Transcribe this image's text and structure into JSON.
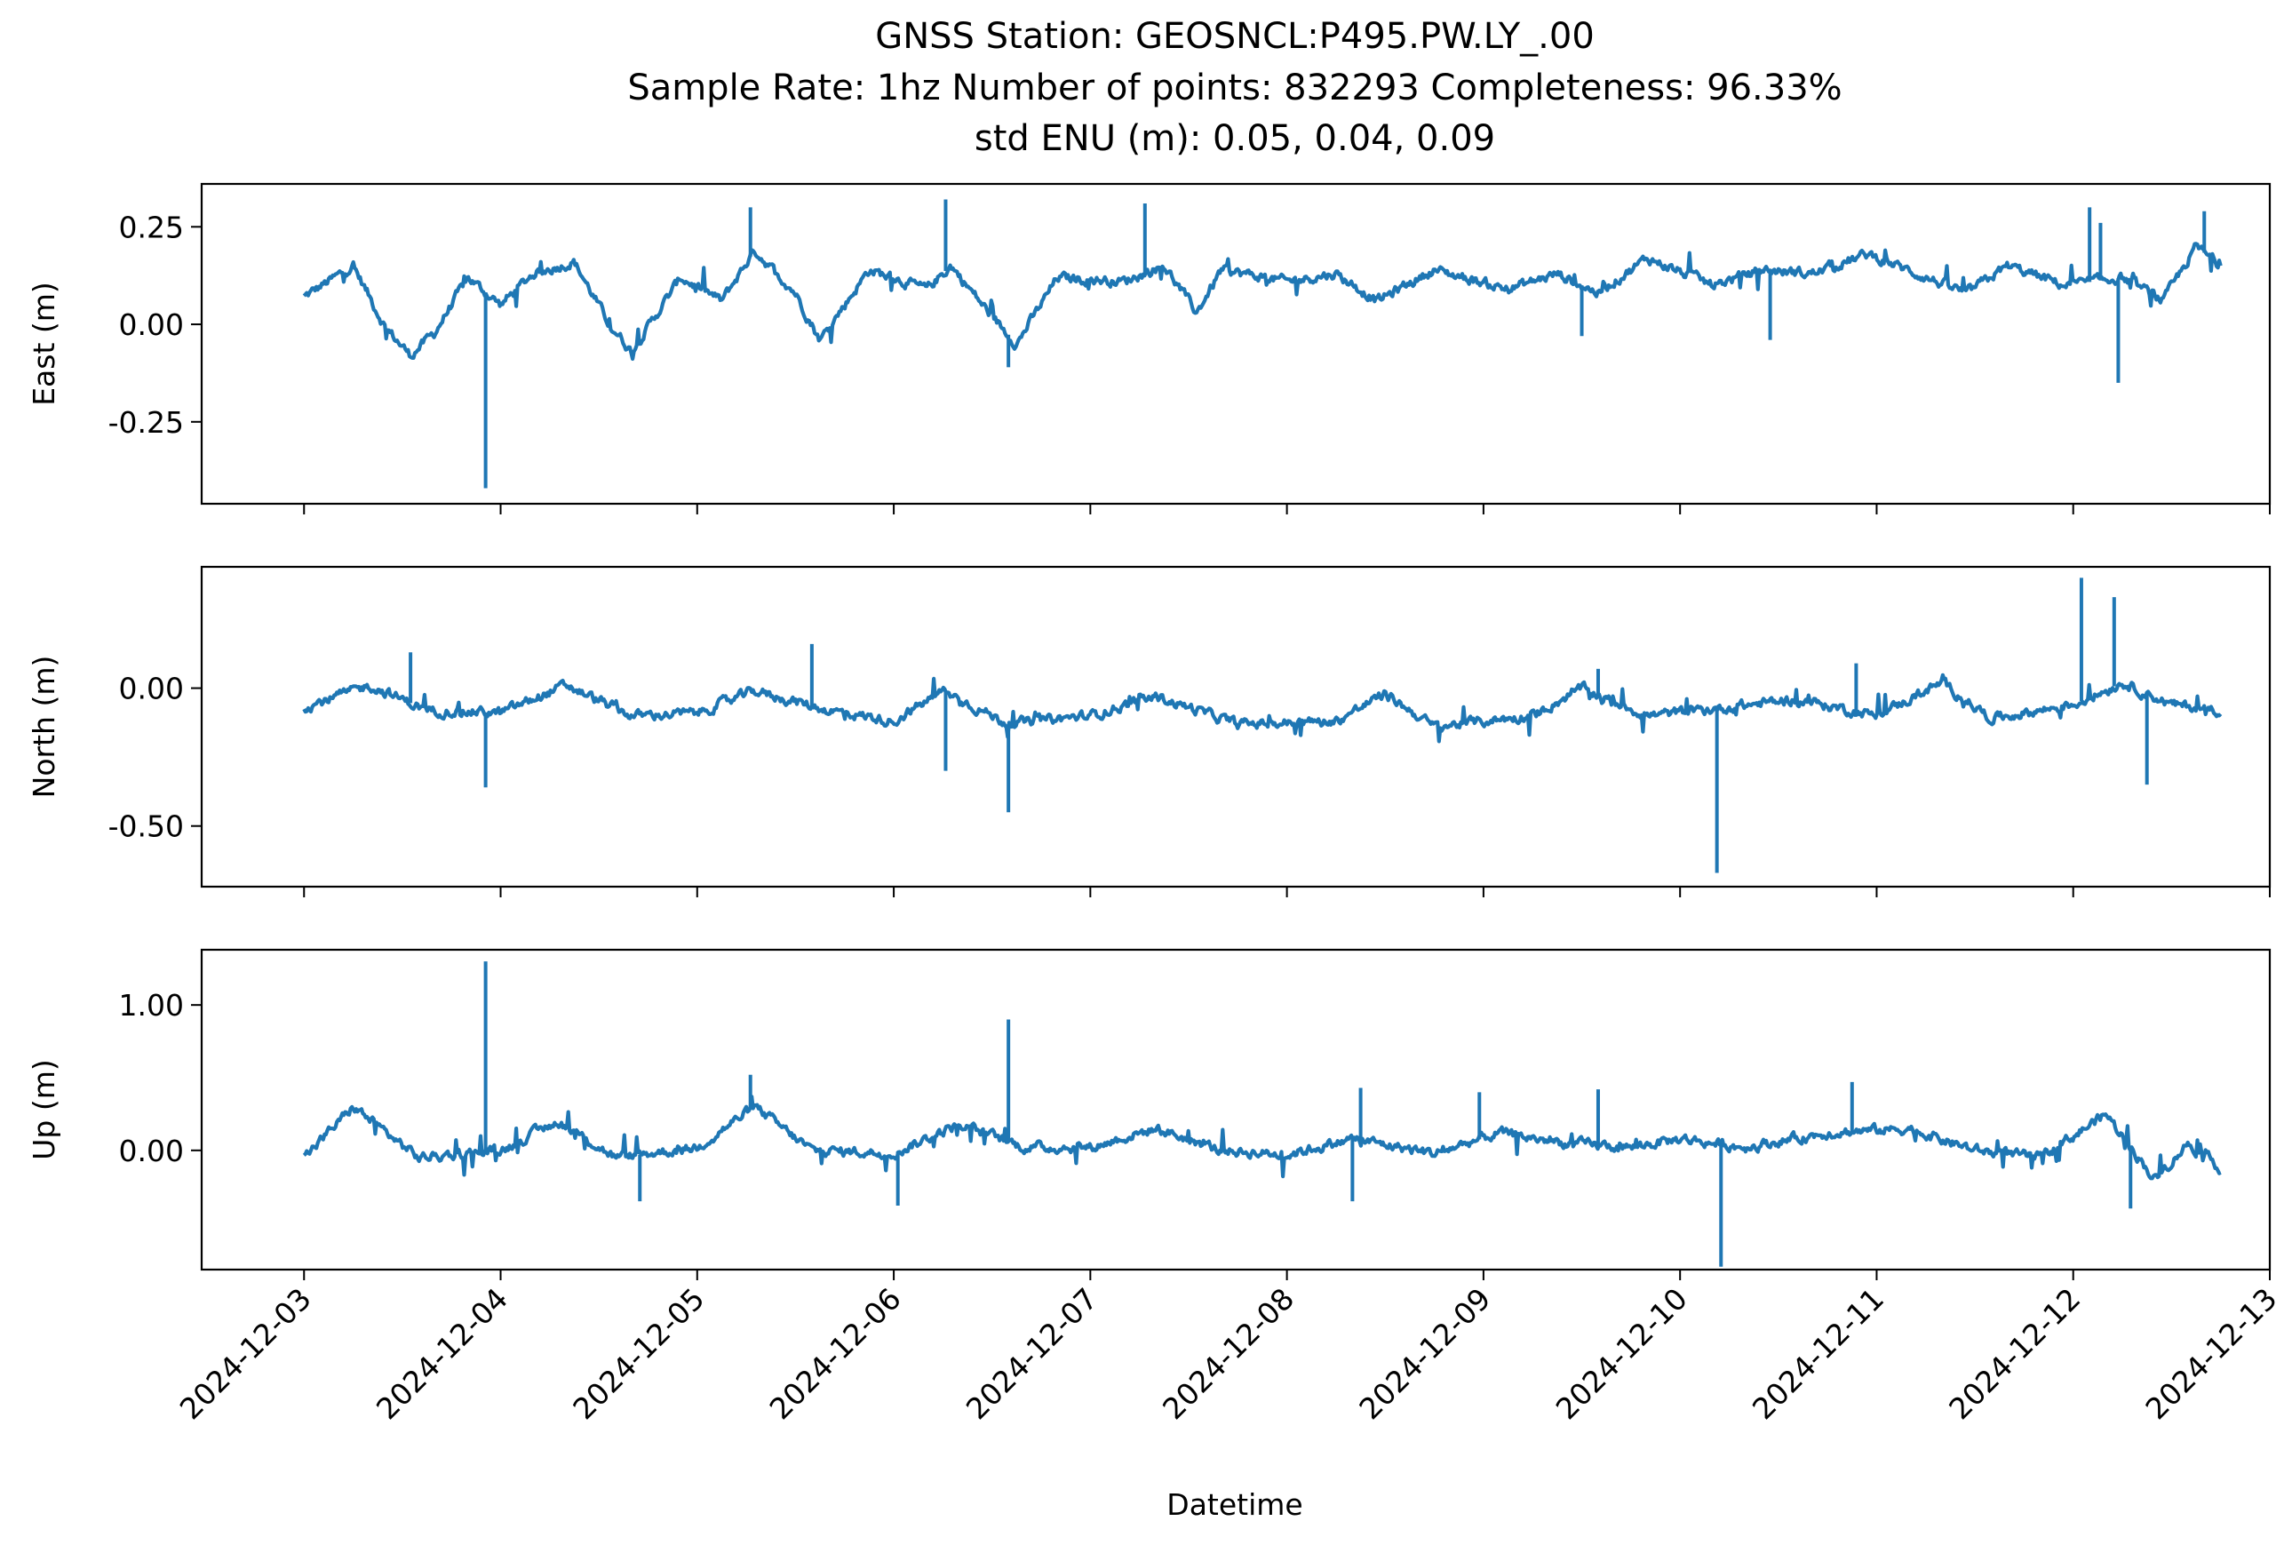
{
  "chart_data": {
    "type": "line",
    "title_lines": [
      "GNSS Station: GEOSNCL:P495.PW.LY_.00",
      "Sample Rate: 1hz   Number of points: 832293    Completeness:  96.33%",
      "std ENU (m):  0.05, 0.04, 0.09"
    ],
    "xlabel": "Datetime",
    "x_range": [
      "2024-12-02 11:30",
      "2024-12-13 00:00"
    ],
    "x_ticks": [
      "2024-12-03",
      "2024-12-04",
      "2024-12-05",
      "2024-12-06",
      "2024-12-07",
      "2024-12-08",
      "2024-12-09",
      "2024-12-10",
      "2024-12-11",
      "2024-12-12",
      "2024-12-13"
    ],
    "x_data_range": [
      "2024-12-03 00:00",
      "2024-12-12 18:00"
    ],
    "grid": false,
    "line_color": "#1f77b4",
    "panels": [
      {
        "ylabel": "East (m)",
        "ylim": [
          -0.46,
          0.36
        ],
        "yticks": [
          0.25,
          0.0,
          -0.25
        ],
        "ytick_labels": [
          "0.25",
          "0.00",
          "-0.25"
        ],
        "baseline": [
          [
            "2024-12-03 00:00",
            0.07
          ],
          [
            "2024-12-03 06:00",
            0.15
          ],
          [
            "2024-12-03 10:00",
            -0.01
          ],
          [
            "2024-12-03 13:00",
            -0.08
          ],
          [
            "2024-12-03 16:00",
            -0.02
          ],
          [
            "2024-12-03 20:00",
            0.12
          ],
          [
            "2024-12-04 00:00",
            0.05
          ],
          [
            "2024-12-04 04:00",
            0.13
          ],
          [
            "2024-12-04 09:00",
            0.16
          ],
          [
            "2024-12-04 13:00",
            0.01
          ],
          [
            "2024-12-04 16:00",
            -0.07
          ],
          [
            "2024-12-04 22:00",
            0.12
          ],
          [
            "2024-12-05 03:00",
            0.06
          ],
          [
            "2024-12-05 07:00",
            0.19
          ],
          [
            "2024-12-05 12:00",
            0.08
          ],
          [
            "2024-12-05 15:00",
            -0.04
          ],
          [
            "2024-12-05 21:00",
            0.14
          ],
          [
            "2024-12-06 04:00",
            0.09
          ],
          [
            "2024-12-06 07:00",
            0.15
          ],
          [
            "2024-12-06 12:00",
            0.02
          ],
          [
            "2024-12-06 15:00",
            -0.05
          ],
          [
            "2024-12-06 20:00",
            0.12
          ],
          [
            "2024-12-07 04:00",
            0.11
          ],
          [
            "2024-12-07 09:00",
            0.15
          ],
          [
            "2024-12-07 13:00",
            0.03
          ],
          [
            "2024-12-07 16:00",
            0.14
          ],
          [
            "2024-12-08 00:00",
            0.11
          ],
          [
            "2024-12-08 06:00",
            0.13
          ],
          [
            "2024-12-08 11:00",
            0.06
          ],
          [
            "2024-12-08 18:00",
            0.14
          ],
          [
            "2024-12-09 03:00",
            0.09
          ],
          [
            "2024-12-09 09:00",
            0.13
          ],
          [
            "2024-12-09 14:00",
            0.08
          ],
          [
            "2024-12-09 20:00",
            0.17
          ],
          [
            "2024-12-10 04:00",
            0.1
          ],
          [
            "2024-12-10 10:00",
            0.14
          ],
          [
            "2024-12-10 16:00",
            0.13
          ],
          [
            "2024-12-10 23:00",
            0.18
          ],
          [
            "2024-12-11 06:00",
            0.12
          ],
          [
            "2024-12-11 11:00",
            0.08
          ],
          [
            "2024-12-11 16:00",
            0.15
          ],
          [
            "2024-12-11 23:00",
            0.1
          ],
          [
            "2024-12-12 06:00",
            0.12
          ],
          [
            "2024-12-12 11:00",
            0.06
          ],
          [
            "2024-12-12 15:00",
            0.2
          ],
          [
            "2024-12-12 18:00",
            0.15
          ]
        ],
        "spikes": [
          [
            "2024-12-03 22:10",
            -0.42
          ],
          [
            "2024-12-05 06:30",
            0.3
          ],
          [
            "2024-12-06 06:20",
            0.32
          ],
          [
            "2024-12-06 14:00",
            -0.11
          ],
          [
            "2024-12-07 06:40",
            0.31
          ],
          [
            "2024-12-12 02:00",
            0.3
          ],
          [
            "2024-12-12 05:30",
            -0.15
          ],
          [
            "2024-12-12 16:00",
            0.29
          ],
          [
            "2024-12-12 03:20",
            0.26
          ],
          [
            "2024-12-09 12:00",
            -0.03
          ],
          [
            "2024-12-10 11:00",
            -0.04
          ]
        ]
      },
      {
        "ylabel": "North (m)",
        "ylim": [
          -0.72,
          0.44
        ],
        "yticks": [
          0.0,
          -0.5
        ],
        "ytick_labels": [
          "0.00",
          "-0.50"
        ],
        "baseline": [
          [
            "2024-12-03 00:00",
            -0.07
          ],
          [
            "2024-12-03 08:00",
            0.01
          ],
          [
            "2024-12-03 15:00",
            -0.08
          ],
          [
            "2024-12-04 00:00",
            -0.09
          ],
          [
            "2024-12-04 08:00",
            0.01
          ],
          [
            "2024-12-04 16:00",
            -0.1
          ],
          [
            "2024-12-05 00:00",
            -0.09
          ],
          [
            "2024-12-05 07:00",
            -0.01
          ],
          [
            "2024-12-05 16:00",
            -0.08
          ],
          [
            "2024-12-06 00:00",
            -0.12
          ],
          [
            "2024-12-06 06:00",
            -0.01
          ],
          [
            "2024-12-06 14:00",
            -0.13
          ],
          [
            "2024-12-07 00:00",
            -0.1
          ],
          [
            "2024-12-07 08:00",
            -0.03
          ],
          [
            "2024-12-07 18:00",
            -0.13
          ],
          [
            "2024-12-08 06:00",
            -0.12
          ],
          [
            "2024-12-08 12:00",
            -0.02
          ],
          [
            "2024-12-08 18:00",
            -0.14
          ],
          [
            "2024-12-09 06:00",
            -0.1
          ],
          [
            "2024-12-09 12:00",
            0.0
          ],
          [
            "2024-12-09 20:00",
            -0.1
          ],
          [
            "2024-12-10 06:00",
            -0.07
          ],
          [
            "2024-12-10 14:00",
            -0.04
          ],
          [
            "2024-12-11 00:00",
            -0.1
          ],
          [
            "2024-12-11 08:00",
            0.02
          ],
          [
            "2024-12-11 14:00",
            -0.11
          ],
          [
            "2024-12-12 00:00",
            -0.06
          ],
          [
            "2024-12-12 06:00",
            0.02
          ],
          [
            "2024-12-12 12:00",
            -0.06
          ],
          [
            "2024-12-12 18:00",
            -0.08
          ]
        ],
        "spikes": [
          [
            "2024-12-03 13:00",
            0.13
          ],
          [
            "2024-12-03 22:10",
            -0.36
          ],
          [
            "2024-12-05 14:00",
            0.16
          ],
          [
            "2024-12-06 06:20",
            -0.3
          ],
          [
            "2024-12-06 14:00",
            -0.45
          ],
          [
            "2024-12-10 04:30",
            -0.67
          ],
          [
            "2024-12-12 01:00",
            0.4
          ],
          [
            "2024-12-12 05:00",
            0.33
          ],
          [
            "2024-12-12 09:00",
            -0.35
          ],
          [
            "2024-12-09 14:00",
            0.07
          ],
          [
            "2024-12-10 21:30",
            0.09
          ]
        ]
      },
      {
        "ylabel": "Up (m)",
        "ylim": [
          -0.82,
          1.38
        ],
        "yticks": [
          1.0,
          0.0
        ],
        "ytick_labels": [
          "1.00",
          "0.00"
        ],
        "baseline": [
          [
            "2024-12-03 00:00",
            -0.05
          ],
          [
            "2024-12-03 06:00",
            0.3
          ],
          [
            "2024-12-03 14:00",
            -0.05
          ],
          [
            "2024-12-04 00:00",
            0.0
          ],
          [
            "2024-12-04 07:00",
            0.2
          ],
          [
            "2024-12-04 14:00",
            -0.05
          ],
          [
            "2024-12-05 00:00",
            0.02
          ],
          [
            "2024-12-05 07:00",
            0.3
          ],
          [
            "2024-12-05 14:00",
            0.0
          ],
          [
            "2024-12-06 00:00",
            -0.02
          ],
          [
            "2024-12-06 08:00",
            0.18
          ],
          [
            "2024-12-06 16:00",
            0.02
          ],
          [
            "2024-12-07 00:00",
            0.02
          ],
          [
            "2024-12-07 08:00",
            0.15
          ],
          [
            "2024-12-07 16:00",
            0.0
          ],
          [
            "2024-12-08 00:00",
            -0.03
          ],
          [
            "2024-12-08 08:00",
            0.08
          ],
          [
            "2024-12-08 18:00",
            -0.02
          ],
          [
            "2024-12-09 02:00",
            0.12
          ],
          [
            "2024-12-09 10:00",
            0.05
          ],
          [
            "2024-12-09 18:00",
            0.02
          ],
          [
            "2024-12-10 00:00",
            0.08
          ],
          [
            "2024-12-10 08:00",
            0.02
          ],
          [
            "2024-12-10 18:00",
            0.12
          ],
          [
            "2024-12-11 04:00",
            0.15
          ],
          [
            "2024-12-11 12:00",
            0.0
          ],
          [
            "2024-12-11 20:00",
            -0.05
          ],
          [
            "2024-12-12 04:00",
            0.25
          ],
          [
            "2024-12-12 10:00",
            -0.2
          ],
          [
            "2024-12-12 14:00",
            0.05
          ],
          [
            "2024-12-12 18:00",
            -0.12
          ]
        ],
        "spikes": [
          [
            "2024-12-03 22:10",
            1.3
          ],
          [
            "2024-12-06 14:00",
            0.9
          ],
          [
            "2024-12-10 05:00",
            -0.8
          ],
          [
            "2024-12-05 06:30",
            0.52
          ],
          [
            "2024-12-04 17:00",
            -0.35
          ],
          [
            "2024-12-06 00:30",
            -0.38
          ],
          [
            "2024-12-08 09:00",
            0.43
          ],
          [
            "2024-12-08 08:00",
            -0.35
          ],
          [
            "2024-12-10 21:00",
            0.47
          ],
          [
            "2024-12-12 07:00",
            -0.4
          ],
          [
            "2024-12-08 23:30",
            0.4
          ],
          [
            "2024-12-09 14:00",
            0.42
          ]
        ]
      }
    ]
  }
}
